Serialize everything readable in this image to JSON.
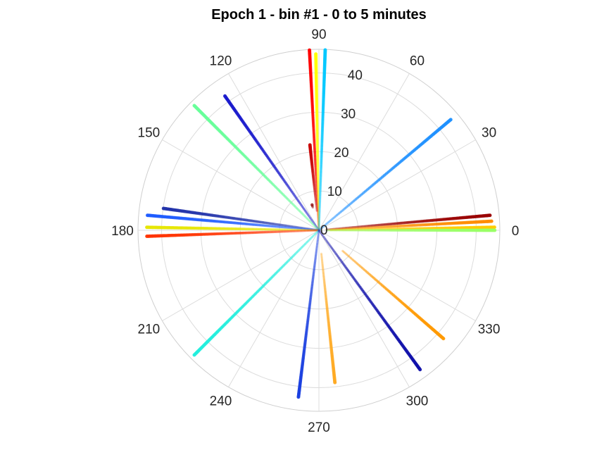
{
  "chart_data": {
    "type": "scatter",
    "projection": "polar",
    "title": "Epoch 1 - bin #1 - 0 to 5 minutes",
    "xlabel": "",
    "ylabel": "",
    "theta_unit": "degrees",
    "theta_ticks": [
      0,
      30,
      60,
      90,
      120,
      150,
      180,
      210,
      240,
      270,
      300,
      330
    ],
    "theta_tick_labels": [
      "0",
      "30",
      "60",
      "90",
      "120",
      "150",
      "180",
      "210",
      "240",
      "270",
      "300",
      "330"
    ],
    "r_ticks": [
      0,
      10,
      20,
      30,
      40
    ],
    "r_tick_labels": [
      "0",
      "10",
      "20",
      "30",
      "40"
    ],
    "rlim": [
      0,
      46
    ],
    "r_label_angle": 80,
    "grid": true,
    "colormap": "jet",
    "series": [
      {
        "theta": 93,
        "r": [
          0,
          46
        ],
        "color": "#ff0000",
        "value": 0.89
      },
      {
        "theta": 91,
        "r": [
          0,
          45
        ],
        "color": "#ffff00",
        "value": 0.63
      },
      {
        "theta": 88,
        "r": [
          0,
          46
        ],
        "color": "#00c8ff",
        "value": 0.35
      },
      {
        "theta": 96,
        "r": [
          5,
          22
        ],
        "color": "#c80000",
        "value": 0.95
      },
      {
        "theta": 105,
        "r": [
          6,
          7
        ],
        "color": "#8b0000",
        "value": 1.0
      },
      {
        "theta": 125,
        "r": [
          0,
          42
        ],
        "color": "#1a1acc",
        "value": 0.08
      },
      {
        "theta": 135,
        "r": [
          0,
          45
        ],
        "color": "#66ff99",
        "value": 0.5
      },
      {
        "theta": 40,
        "r": [
          0,
          44
        ],
        "color": "#1e90ff",
        "value": 0.3
      },
      {
        "theta": 5,
        "r": [
          2,
          44
        ],
        "color": "#990000",
        "value": 0.98
      },
      {
        "theta": 3,
        "r": [
          3,
          44
        ],
        "color": "#ff8c00",
        "value": 0.8
      },
      {
        "theta": 1,
        "r": [
          3,
          45
        ],
        "color": "#ffcc00",
        "value": 0.7
      },
      {
        "theta": 0,
        "r": [
          2,
          45
        ],
        "color": "#99ff66",
        "value": 0.55
      },
      {
        "theta": 172,
        "r": [
          0,
          40
        ],
        "color": "#2233aa",
        "value": 0.12
      },
      {
        "theta": 175,
        "r": [
          0,
          44
        ],
        "color": "#1e5bff",
        "value": 0.2
      },
      {
        "theta": 179,
        "r": [
          0,
          44
        ],
        "color": "#e6e600",
        "value": 0.65
      },
      {
        "theta": 182,
        "r": [
          0,
          44
        ],
        "color": "#ff3300",
        "value": 0.85
      },
      {
        "theta": 225,
        "r": [
          0,
          45
        ],
        "color": "#22eedd",
        "value": 0.4
      },
      {
        "theta": 263,
        "r": [
          0,
          43
        ],
        "color": "#1a3fe0",
        "value": 0.15
      },
      {
        "theta": 276,
        "r": [
          6,
          39
        ],
        "color": "#ffaa22",
        "value": 0.75
      },
      {
        "theta": 306,
        "r": [
          0,
          44
        ],
        "color": "#1010aa",
        "value": 0.05
      },
      {
        "theta": 319,
        "r": [
          8,
          42
        ],
        "color": "#ff9900",
        "value": 0.78
      }
    ]
  }
}
